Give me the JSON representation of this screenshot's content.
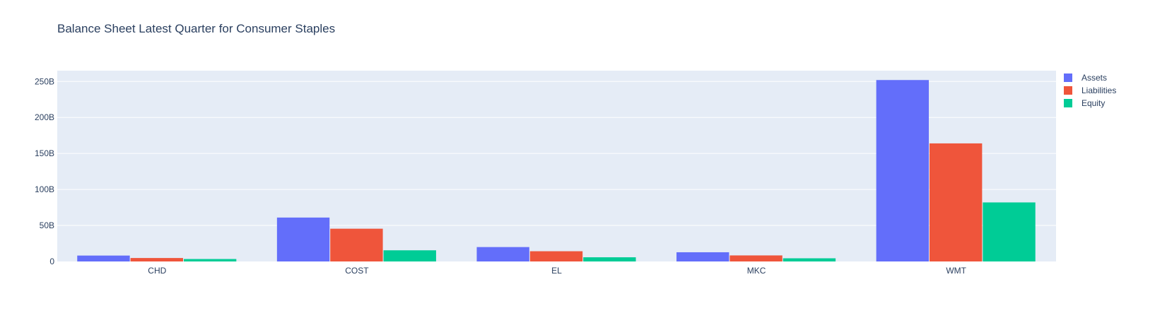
{
  "chart_data": {
    "type": "bar",
    "title": "Balance Sheet Latest Quarter for Consumer Staples",
    "xlabel": "",
    "ylabel": "",
    "categories": [
      "CHD",
      "COST",
      "EL",
      "MKC",
      "WMT"
    ],
    "series": [
      {
        "name": "Assets",
        "color": "#636efa",
        "values": [
          8.2,
          61.0,
          20.0,
          12.8,
          252.0
        ]
      },
      {
        "name": "Liabilities",
        "color": "#ef553b",
        "values": [
          4.8,
          45.5,
          14.2,
          8.4,
          164.0
        ]
      },
      {
        "name": "Equity",
        "color": "#00cc96",
        "values": [
          3.4,
          15.5,
          5.8,
          4.4,
          82.0
        ]
      }
    ],
    "ylim": [
      0,
      265
    ],
    "yticks": [
      {
        "value": 0,
        "label": "0"
      },
      {
        "value": 50,
        "label": "50B"
      },
      {
        "value": 100,
        "label": "100B"
      },
      {
        "value": 150,
        "label": "150B"
      },
      {
        "value": 200,
        "label": "200B"
      },
      {
        "value": 250,
        "label": "250B"
      }
    ],
    "grid": true,
    "legend_position": "top-right"
  }
}
